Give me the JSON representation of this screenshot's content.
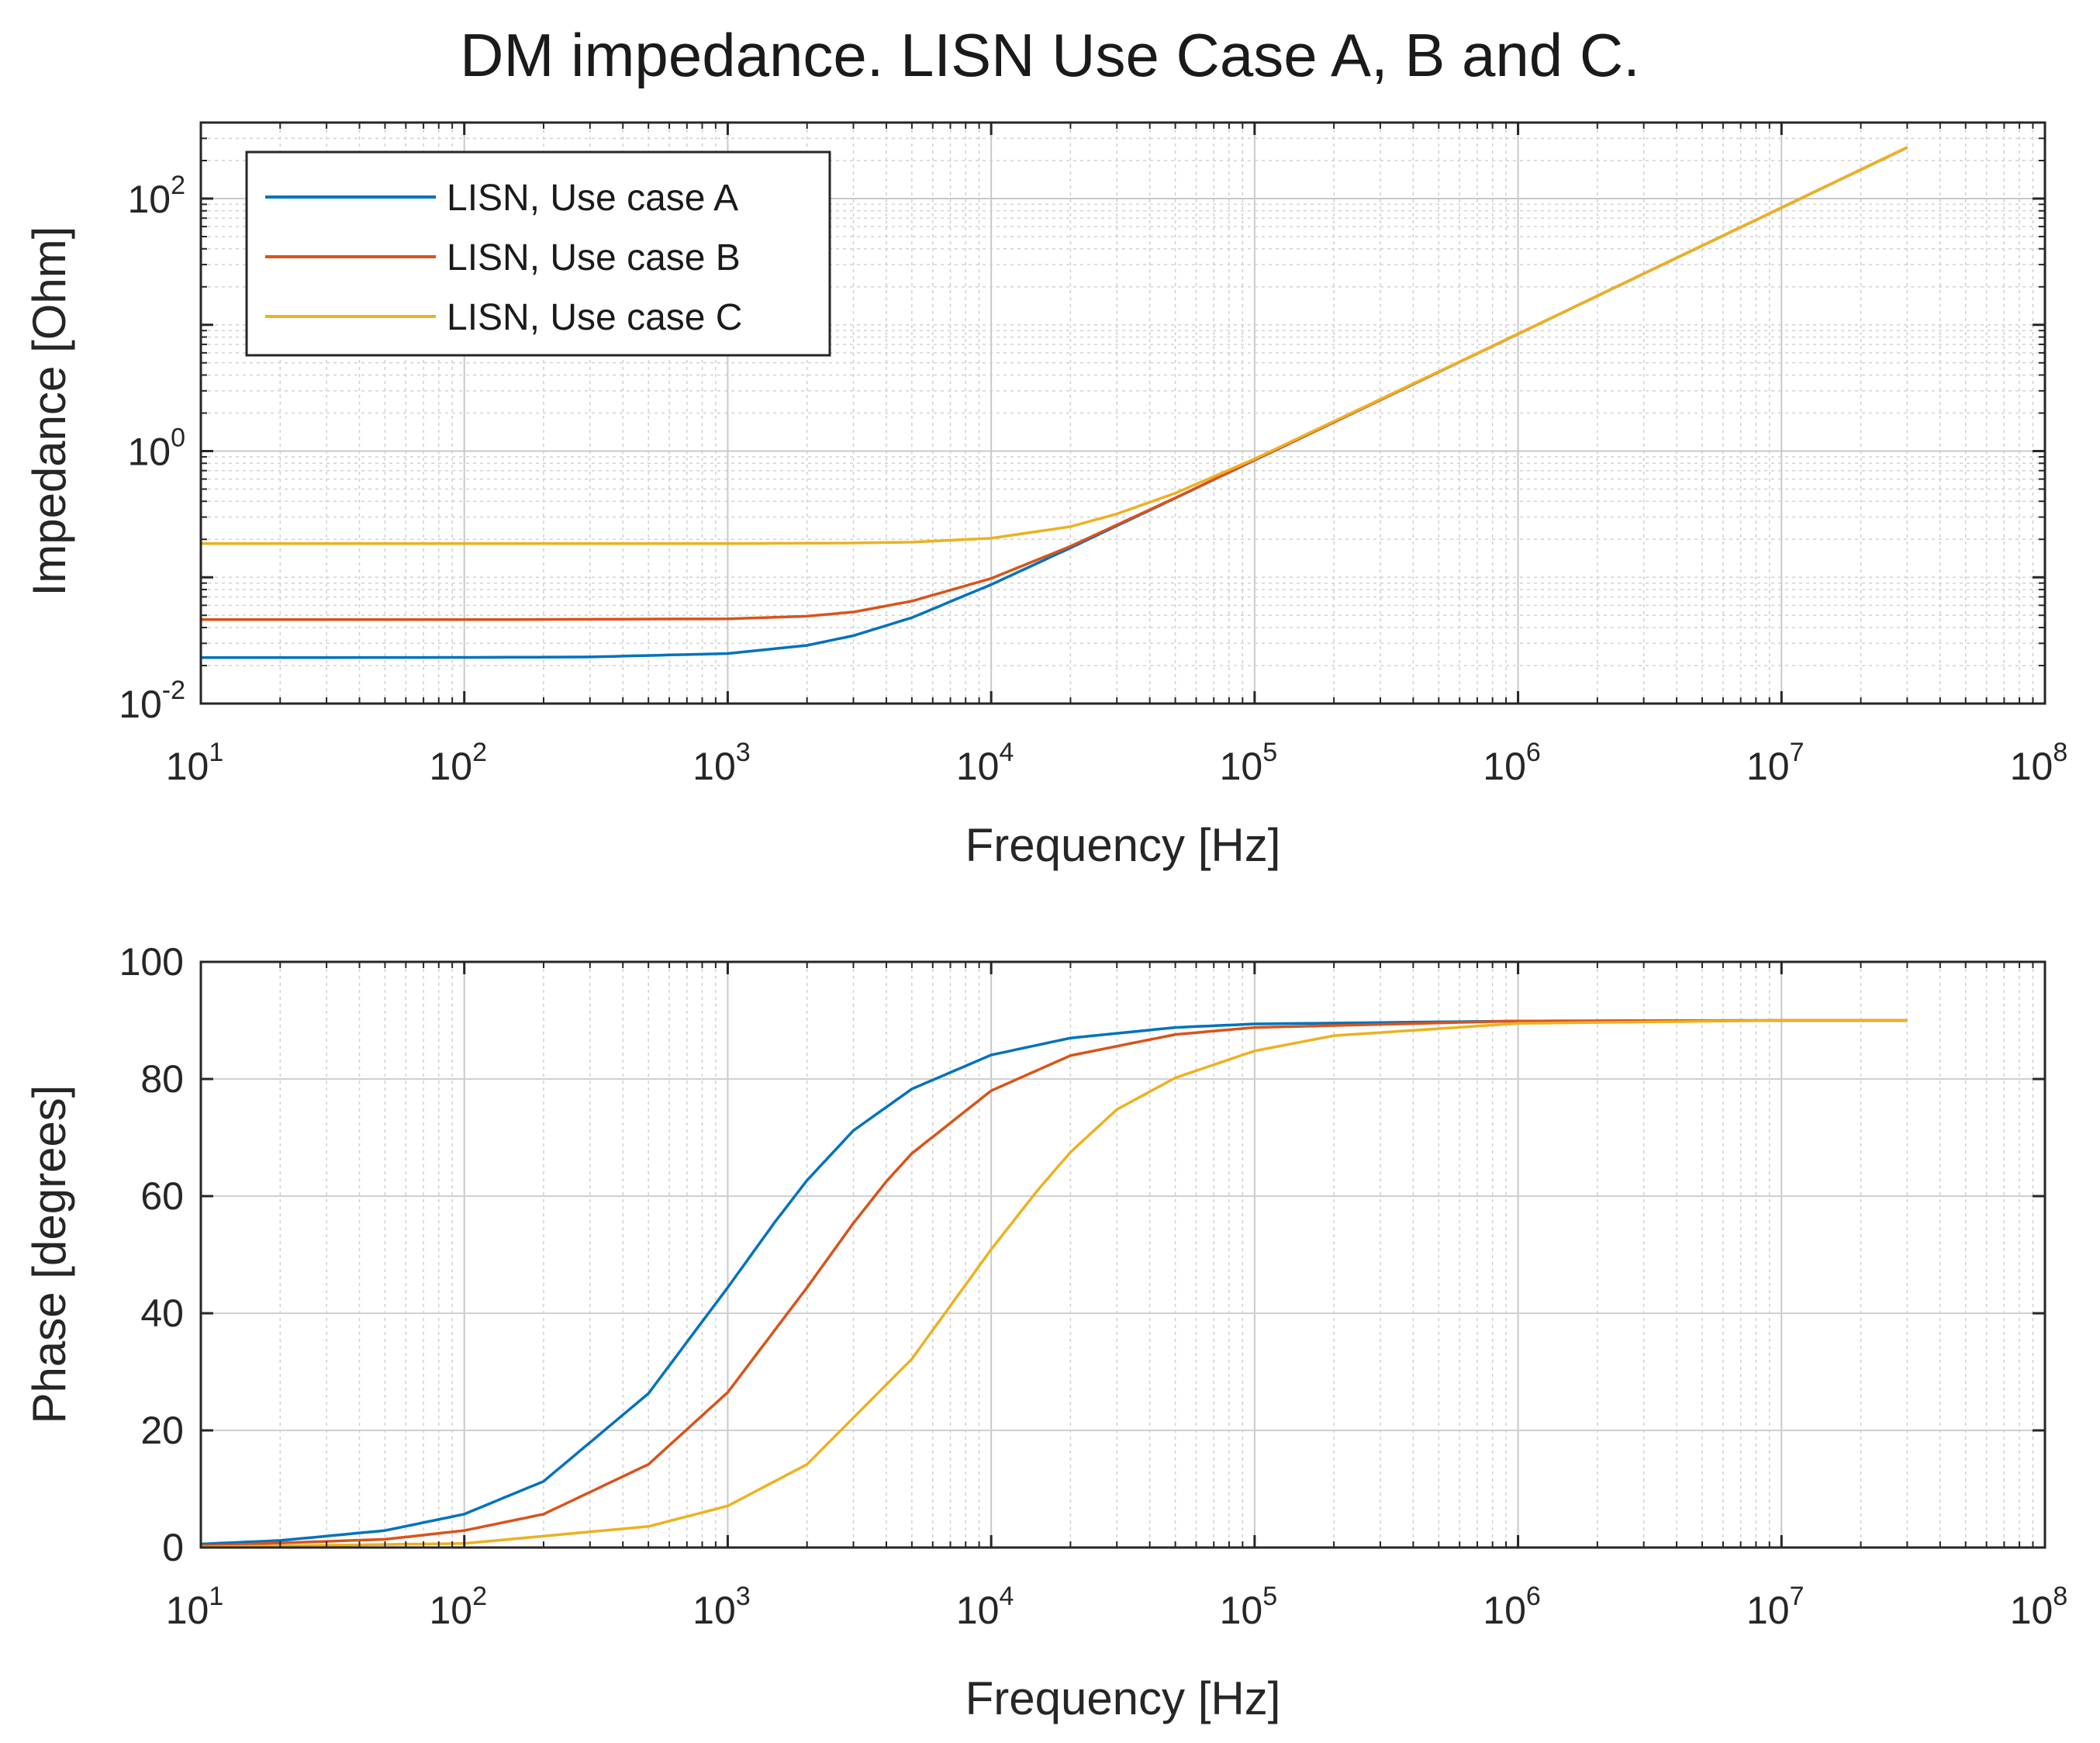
{
  "figure_title": "DM impedance. LISN Use Case A, B and C.",
  "colors": {
    "A": "#0072BD",
    "B": "#D95319",
    "C": "#EDB120",
    "axes": "#262626",
    "grid": "#b0b0b0"
  },
  "chart_data": [
    {
      "type": "line",
      "subplot": "top",
      "xscale": "log",
      "yscale": "log",
      "xlabel": "Frequency [Hz]",
      "ylabel": "Impedance [Ohm]",
      "xlim": [
        10,
        100000000
      ],
      "ylim": [
        0.01,
        400
      ],
      "xticks": [
        {
          "base": "10",
          "exp": "1"
        },
        {
          "base": "10",
          "exp": "2"
        },
        {
          "base": "10",
          "exp": "3"
        },
        {
          "base": "10",
          "exp": "4"
        },
        {
          "base": "10",
          "exp": "5"
        },
        {
          "base": "10",
          "exp": "6"
        },
        {
          "base": "10",
          "exp": "7"
        },
        {
          "base": "10",
          "exp": "8"
        }
      ],
      "yticks": [
        {
          "value": 0.01,
          "base": "10",
          "exp": "-2"
        },
        {
          "value": 1,
          "base": "10",
          "exp": "0"
        },
        {
          "value": 100,
          "base": "10",
          "exp": "2"
        }
      ],
      "grid": true,
      "legend": {
        "location": "top-left",
        "entries": [
          "LISN, Use case A",
          "LISN, Use case B",
          "LISN, Use case C"
        ]
      },
      "series": [
        {
          "name": "LISN, Use case A",
          "x": [
            10,
            100,
            300,
            1000,
            2000,
            3000,
            5000,
            10000,
            20000,
            30000,
            50000,
            100000,
            1000000,
            10000000,
            30000000
          ],
          "y": [
            0.0231,
            0.0232,
            0.0234,
            0.0249,
            0.0289,
            0.0345,
            0.0479,
            0.0876,
            0.171,
            0.256,
            0.424,
            0.847,
            8.47,
            84.7,
            254
          ]
        },
        {
          "name": "LISN, Use case B",
          "x": [
            10,
            100,
            1000,
            2000,
            3000,
            5000,
            10000,
            20000,
            30000,
            50000,
            100000,
            1000000,
            10000000,
            30000000
          ],
          "y": [
            0.0462,
            0.0462,
            0.0469,
            0.0492,
            0.0531,
            0.0648,
            0.0979,
            0.176,
            0.26,
            0.426,
            0.848,
            8.47,
            84.7,
            254
          ]
        },
        {
          "name": "LISN, Use case C",
          "x": [
            10,
            100,
            1000,
            3000,
            5000,
            10000,
            20000,
            30000,
            50000,
            100000,
            1000000,
            10000000,
            30000000
          ],
          "y": [
            0.185,
            0.185,
            0.185,
            0.187,
            0.19,
            0.204,
            0.252,
            0.318,
            0.464,
            0.867,
            8.47,
            84.7,
            254
          ]
        }
      ]
    },
    {
      "type": "line",
      "subplot": "bottom",
      "xscale": "log",
      "yscale": "linear",
      "xlabel": "Frequency [Hz]",
      "ylabel": "Phase [degrees]",
      "xlim": [
        10,
        100000000
      ],
      "ylim": [
        0,
        100
      ],
      "xticks": [
        {
          "base": "10",
          "exp": "1"
        },
        {
          "base": "10",
          "exp": "2"
        },
        {
          "base": "10",
          "exp": "3"
        },
        {
          "base": "10",
          "exp": "4"
        },
        {
          "base": "10",
          "exp": "5"
        },
        {
          "base": "10",
          "exp": "6"
        },
        {
          "base": "10",
          "exp": "7"
        },
        {
          "base": "10",
          "exp": "8"
        }
      ],
      "yticks": [
        {
          "value": 0,
          "label": "0"
        },
        {
          "value": 20,
          "label": "20"
        },
        {
          "value": 40,
          "label": "40"
        },
        {
          "value": 60,
          "label": "60"
        },
        {
          "value": 80,
          "label": "80"
        },
        {
          "value": 100,
          "label": "100"
        }
      ],
      "grid": true,
      "series": [
        {
          "name": "LISN, Use case A",
          "x": [
            10,
            20,
            50,
            100,
            200,
            500,
            1000,
            1500,
            2000,
            3000,
            5000,
            10000,
            20000,
            50000,
            100000,
            1000000,
            10000000,
            30000000
          ],
          "y": [
            0.6,
            1.2,
            2.9,
            5.7,
            11.3,
            26.3,
            44.4,
            55.4,
            62.7,
            71.2,
            78.3,
            84.1,
            87.0,
            88.8,
            89.4,
            89.9,
            90.0,
            90.0
          ]
        },
        {
          "name": "LISN, Use case B",
          "x": [
            10,
            50,
            100,
            200,
            500,
            1000,
            2000,
            3000,
            4000,
            5000,
            10000,
            20000,
            50000,
            100000,
            1000000,
            10000000,
            30000000
          ],
          "y": [
            0.3,
            1.4,
            2.9,
            5.7,
            14.2,
            26.5,
            44.4,
            55.4,
            62.5,
            67.3,
            78.0,
            84.0,
            87.6,
            88.8,
            89.9,
            90.0,
            90.0
          ]
        },
        {
          "name": "LISN, Use case C",
          "x": [
            10,
            100,
            500,
            1000,
            2000,
            5000,
            10000,
            15000,
            20000,
            30000,
            50000,
            100000,
            200000,
            1000000,
            10000000,
            30000000
          ],
          "y": [
            0.1,
            0.7,
            3.6,
            7.1,
            14.2,
            32.2,
            50.9,
            61.0,
            67.5,
            74.8,
            80.2,
            84.8,
            87.4,
            89.5,
            90.0,
            90.0
          ]
        }
      ]
    }
  ]
}
